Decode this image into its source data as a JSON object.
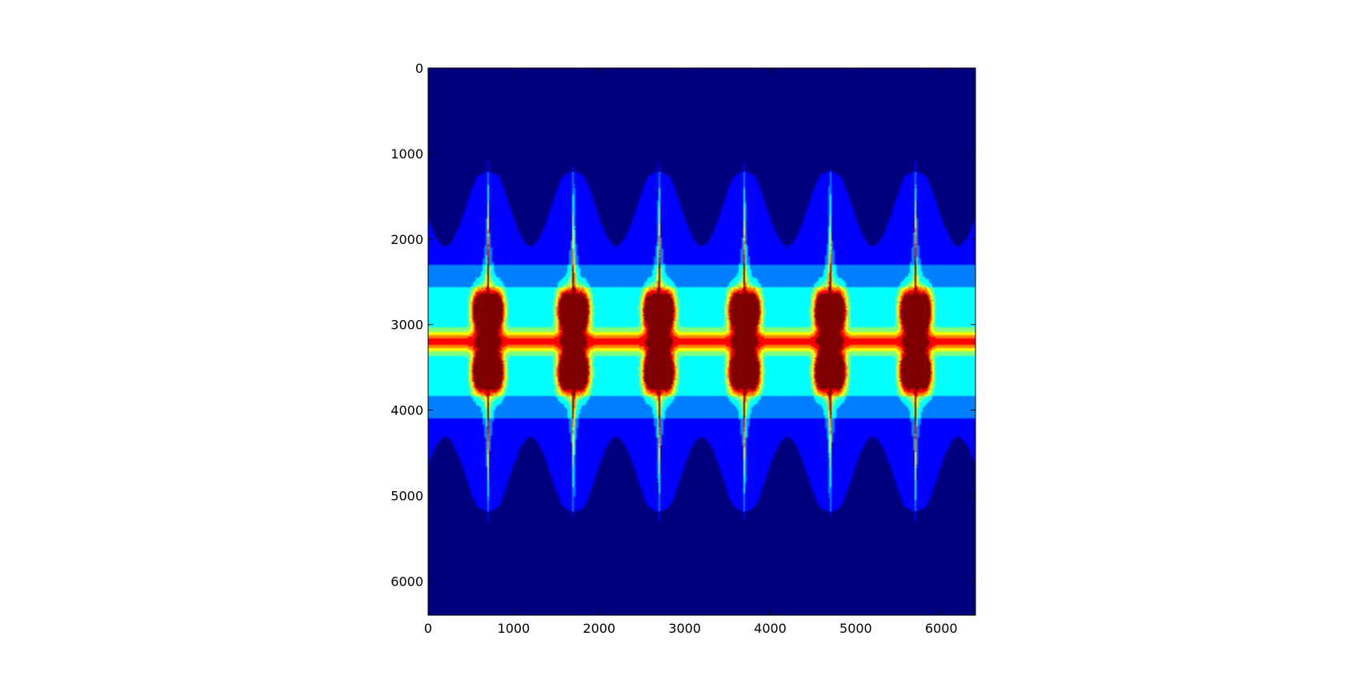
{
  "chart_data": {
    "type": "heatmap",
    "title": "",
    "xlabel": "",
    "ylabel": "",
    "xlim": [
      0,
      6400
    ],
    "ylim": [
      6400,
      0
    ],
    "y_axis_inverted": true,
    "colormap": "jet",
    "x_ticks": [
      0,
      1000,
      2000,
      3000,
      4000,
      5000,
      6000
    ],
    "y_ticks": [
      0,
      1000,
      2000,
      3000,
      4000,
      5000,
      6000
    ],
    "x_tick_labels": [
      "0",
      "1000",
      "2000",
      "3000",
      "4000",
      "5000",
      "6000"
    ],
    "y_tick_labels": [
      "0",
      "1000",
      "2000",
      "3000",
      "4000",
      "5000",
      "6000"
    ],
    "grid": false,
    "legend": "none",
    "pattern": {
      "description_values": "periodic fractal escape-time pattern",
      "period_x": 1000,
      "phase_x": 700,
      "center_y": 3200,
      "repeats": 6
    },
    "colors": {
      "c0": "#00007f",
      "c1": "#0000ff",
      "c2": "#007fff",
      "c3": "#00ffff",
      "c4": "#7fff7f",
      "c5": "#ffff00",
      "c6": "#ff7f00",
      "c7": "#ff0000",
      "c8": "#7f0000"
    }
  }
}
